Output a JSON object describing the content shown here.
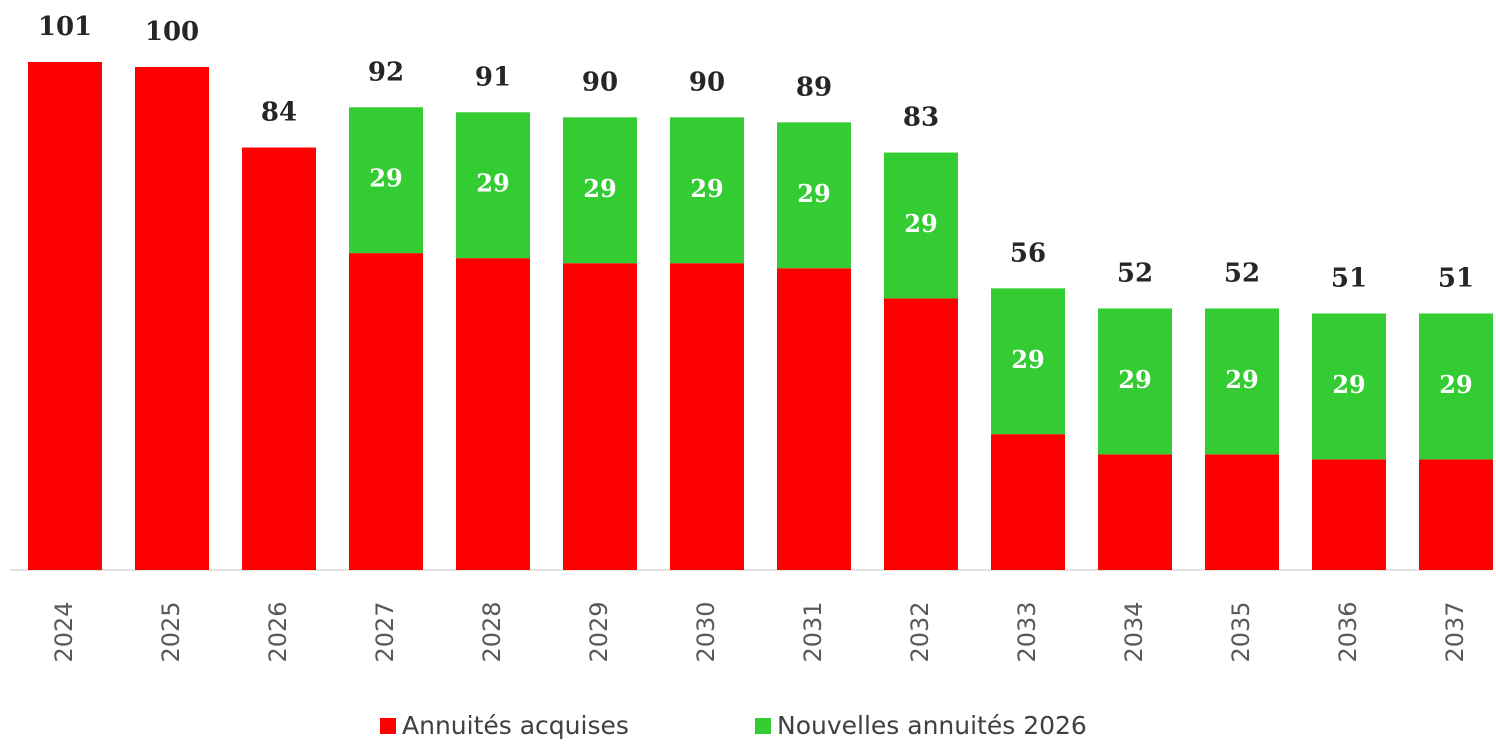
{
  "chart_data": {
    "type": "stacked_bar",
    "categories": [
      "2024",
      "2025",
      "2026",
      "2027",
      "2028",
      "2029",
      "2030",
      "2031",
      "2032",
      "2033",
      "2034",
      "2035",
      "2036",
      "2037"
    ],
    "series": [
      {
        "name": "Annuités acquises",
        "color": "#ff0000",
        "values": [
          101,
          100,
          84,
          63,
          62,
          61,
          61,
          60,
          54,
          27,
          23,
          23,
          22,
          22
        ]
      },
      {
        "name": "Nouvelles annuités 2026",
        "color": "#33cc33",
        "values": [
          null,
          null,
          null,
          29,
          29,
          29,
          29,
          29,
          29,
          29,
          29,
          29,
          29,
          29
        ]
      }
    ],
    "totals": [
      101,
      100,
      84,
      92,
      91,
      90,
      90,
      89,
      83,
      56,
      52,
      52,
      51,
      51
    ],
    "ylim": [
      0,
      101
    ],
    "legend": "bottom"
  }
}
